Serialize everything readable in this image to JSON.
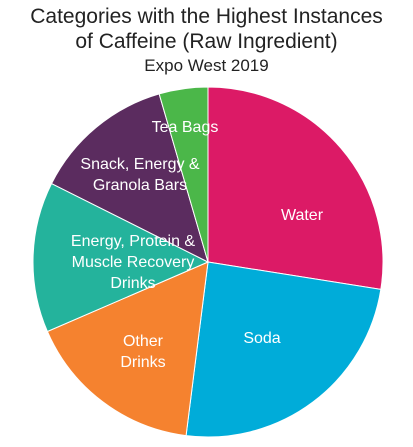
{
  "chart_data": {
    "type": "pie",
    "title": "Categories with the Highest Instances of Caffeine (Raw Ingredient)",
    "subtitle": "Expo West 2019",
    "categories": [
      "Water",
      "Soda",
      "Other Drinks",
      "Energy, Protein & Muscle Recovery Drinks",
      "Snack, Energy & Granola Bars",
      "Tea Bags"
    ],
    "values": [
      27.5,
      24.5,
      16.5,
      13.9,
      13.1,
      4.5
    ],
    "colors": [
      "#dc1a66",
      "#00acd9",
      "#f5822f",
      "#24b39c",
      "#5b2c5f",
      "#4bb749"
    ]
  }
}
